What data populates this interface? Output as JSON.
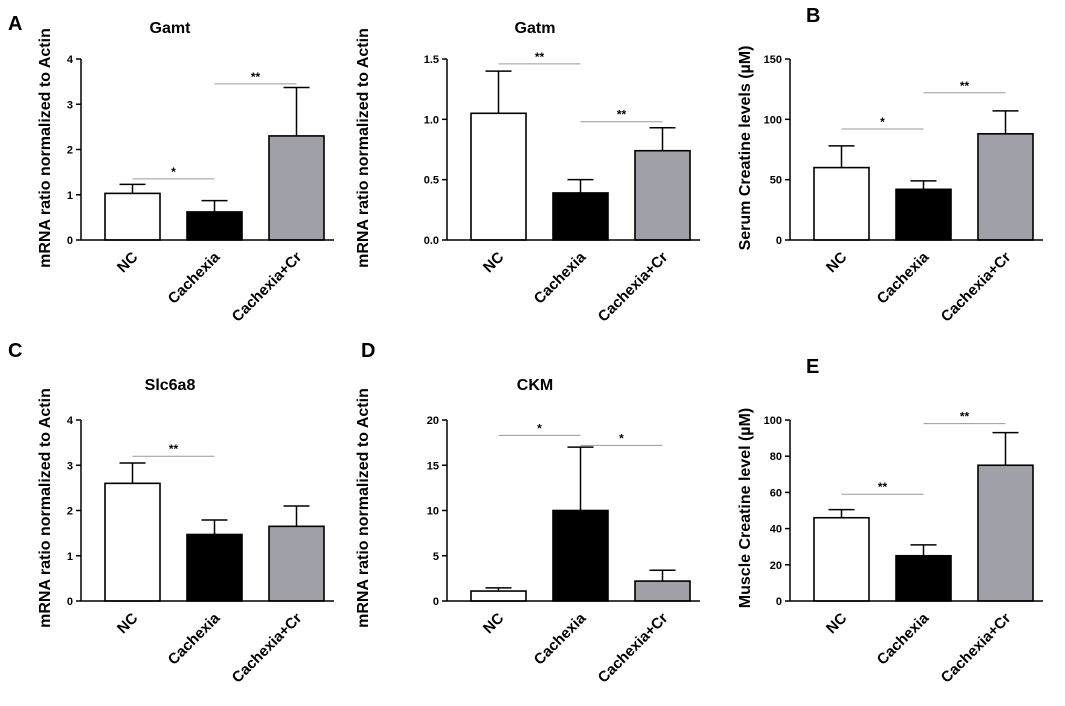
{
  "chart_data": [
    {
      "panel": "A",
      "type": "bar",
      "title": "Gamt",
      "ylabel": "mRNA ratio normalized to Actin",
      "categories": [
        "NC",
        "Cachexia",
        "Cachexia+Cr"
      ],
      "values": [
        1.03,
        0.62,
        2.3
      ],
      "errors": [
        0.2,
        0.25,
        1.07
      ],
      "colors": [
        "#ffffff",
        "#000000",
        "#a0a0a8"
      ],
      "ylim": [
        0,
        4
      ],
      "yticks": [
        "0",
        "1",
        "2",
        "3",
        "4"
      ],
      "significance": [
        {
          "from": 0,
          "to": 1,
          "label": "*",
          "y": 1.35
        },
        {
          "from": 1,
          "to": 2,
          "label": "**",
          "y": 3.45
        }
      ]
    },
    {
      "panel": "",
      "type": "bar",
      "title": "Gatm",
      "ylabel": "mRNA ratio normalized to Actin",
      "categories": [
        "NC",
        "Cachexia",
        "Cachexia+Cr"
      ],
      "values": [
        1.05,
        0.39,
        0.74
      ],
      "errors": [
        0.35,
        0.11,
        0.19
      ],
      "colors": [
        "#ffffff",
        "#000000",
        "#a0a0a8"
      ],
      "ylim": [
        0,
        1.5
      ],
      "yticks": [
        "0.0",
        "0.5",
        "1.0",
        "1.5"
      ],
      "significance": [
        {
          "from": 0,
          "to": 1,
          "label": "**",
          "y": 1.46
        },
        {
          "from": 1,
          "to": 2,
          "label": "**",
          "y": 0.98
        }
      ]
    },
    {
      "panel": "B",
      "type": "bar",
      "title": "",
      "ylabel": "Serum Creatine levels (µM)",
      "categories": [
        "NC",
        "Cachexia",
        "Cachexia+Cr"
      ],
      "values": [
        60,
        42,
        88
      ],
      "errors": [
        18,
        7,
        19
      ],
      "colors": [
        "#ffffff",
        "#000000",
        "#a0a0a8"
      ],
      "ylim": [
        0,
        150
      ],
      "yticks": [
        "0",
        "50",
        "100",
        "150"
      ],
      "significance": [
        {
          "from": 0,
          "to": 1,
          "label": "*",
          "y": 92
        },
        {
          "from": 1,
          "to": 2,
          "label": "**",
          "y": 122
        }
      ]
    },
    {
      "panel": "C",
      "type": "bar",
      "title": "Slc6a8",
      "ylabel": "mRNA ratio normalized to Actin",
      "categories": [
        "NC",
        "Cachexia",
        "Cachexia+Cr"
      ],
      "values": [
        2.6,
        1.47,
        1.65
      ],
      "errors": [
        0.45,
        0.32,
        0.45
      ],
      "colors": [
        "#ffffff",
        "#000000",
        "#a0a0a8"
      ],
      "ylim": [
        0,
        4
      ],
      "yticks": [
        "0",
        "1",
        "2",
        "3",
        "4"
      ],
      "significance": [
        {
          "from": 0,
          "to": 1,
          "label": "**",
          "y": 3.2
        }
      ]
    },
    {
      "panel": "D",
      "type": "bar",
      "title": "CKM",
      "ylabel": "mRNA ratio normalized to Actin",
      "categories": [
        "NC",
        "Cachexia",
        "Cachexia+Cr"
      ],
      "values": [
        1.1,
        10.0,
        2.2
      ],
      "errors": [
        0.35,
        7.0,
        1.2
      ],
      "colors": [
        "#ffffff",
        "#000000",
        "#a0a0a8"
      ],
      "ylim": [
        0,
        20
      ],
      "yticks": [
        "0",
        "5",
        "10",
        "15",
        "20"
      ],
      "significance": [
        {
          "from": 0,
          "to": 1,
          "label": "*",
          "y": 18.3
        },
        {
          "from": 1,
          "to": 2,
          "label": "*",
          "y": 17.2
        }
      ]
    },
    {
      "panel": "E",
      "type": "bar",
      "title": "",
      "ylabel": "Muscle Creatine level (µM)",
      "categories": [
        "NC",
        "Cachexia",
        "Cachexia+Cr"
      ],
      "values": [
        46,
        25,
        75
      ],
      "errors": [
        4.5,
        6,
        18
      ],
      "colors": [
        "#ffffff",
        "#000000",
        "#a0a0a8"
      ],
      "ylim": [
        0,
        100
      ],
      "yticks": [
        "0",
        "20",
        "40",
        "60",
        "80",
        "100"
      ],
      "significance": [
        {
          "from": 0,
          "to": 1,
          "label": "**",
          "y": 59
        },
        {
          "from": 1,
          "to": 2,
          "label": "**",
          "y": 98
        }
      ]
    }
  ]
}
